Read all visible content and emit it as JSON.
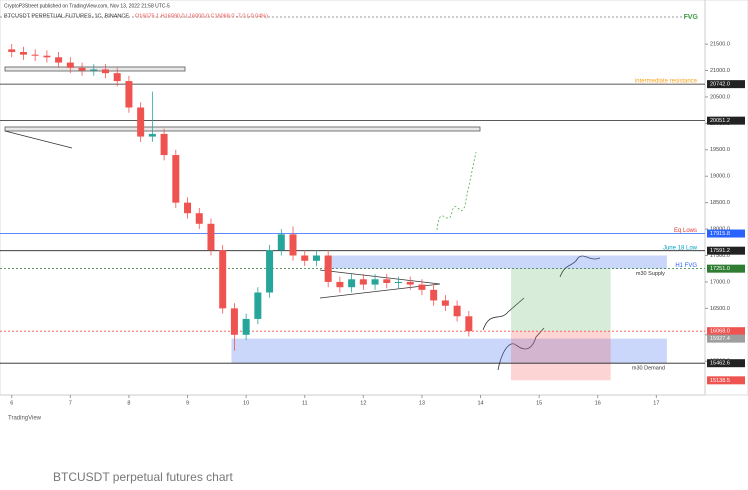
{
  "header": {
    "author": "CryptoP3Street published on TradingView.com, Nov 13, 2022 21:58 UTC-5",
    "symbol": "BTCUSDT PERPETUAL FUTURES, 1C, BINANCE",
    "ohlc": "O16075.1 H16090.0 L16000.0 C16068.0 -7.0 (-0.04%)",
    "corner_tag": "FVG"
  },
  "chart_data": {
    "type": "candlestick",
    "x": [
      6.0,
      6.2,
      6.4,
      6.6,
      6.8,
      7.0,
      7.2,
      7.4,
      7.6,
      7.8,
      8.0,
      8.2,
      8.4,
      8.6,
      8.8,
      9.0,
      9.2,
      9.4,
      9.6,
      9.8,
      10.0,
      10.2,
      10.4,
      10.6,
      10.8,
      11.0,
      11.2,
      11.4,
      11.6,
      11.8,
      12.0,
      12.2,
      12.4,
      12.6,
      12.8,
      13.0,
      13.2,
      13.4,
      13.6,
      13.8
    ],
    "open": [
      21400,
      21350,
      21300,
      21280,
      21250,
      21150,
      21050,
      21000,
      21020,
      20950,
      20800,
      20300,
      19750,
      19800,
      19400,
      18500,
      18300,
      18100,
      17600,
      16500,
      16000,
      16300,
      16800,
      17600,
      17900,
      17500,
      17400,
      17500,
      17000,
      16900,
      17050,
      16950,
      17050,
      16980,
      17000,
      16950,
      16850,
      16650,
      16550,
      16350
    ],
    "high": [
      21500,
      21450,
      21400,
      21380,
      21350,
      21250,
      21150,
      21120,
      21120,
      21050,
      20900,
      20400,
      20600,
      19900,
      19500,
      18600,
      18400,
      18200,
      17700,
      16600,
      16400,
      16900,
      17700,
      18000,
      18050,
      17600,
      17600,
      17600,
      17100,
      17150,
      17150,
      17150,
      17150,
      17100,
      17100,
      17050,
      16950,
      16750,
      16650,
      16450
    ],
    "low": [
      21250,
      21200,
      21180,
      21150,
      21050,
      20950,
      20900,
      20900,
      20850,
      20700,
      20200,
      19650,
      19650,
      19300,
      18400,
      18200,
      18000,
      17500,
      16400,
      15700,
      15900,
      16200,
      16700,
      17500,
      17400,
      17300,
      17300,
      16900,
      16800,
      16800,
      16850,
      16850,
      16880,
      16880,
      16850,
      16750,
      16550,
      16450,
      16250,
      15968
    ],
    "close": [
      21350,
      21300,
      21280,
      21250,
      21150,
      21050,
      21000,
      21020,
      20950,
      20800,
      20300,
      19750,
      19800,
      19400,
      18500,
      18300,
      18100,
      17600,
      16500,
      16000,
      16300,
      16800,
      17600,
      17900,
      17500,
      17400,
      17500,
      17000,
      16900,
      17050,
      16950,
      17050,
      16980,
      17000,
      16950,
      16850,
      16650,
      16550,
      16350,
      16068
    ],
    "up_color": "#26a69a",
    "down_color": "#ef5350",
    "xlim": [
      5.8,
      17.83
    ],
    "xticks": [
      6,
      7,
      8,
      9,
      10,
      11,
      12,
      13,
      14,
      15,
      16,
      17
    ],
    "ylim": [
      15050,
      22050
    ],
    "yticks": [
      {
        "value": 21500,
        "label": "21500.0"
      },
      {
        "value": 21000,
        "label": "21000.0"
      },
      {
        "value": 20500,
        "label": "20500.0"
      },
      {
        "value": 20000,
        "label": "20000.0"
      },
      {
        "value": 19500,
        "label": "19500.0"
      },
      {
        "value": 19000,
        "label": "19000.0"
      },
      {
        "value": 18500,
        "label": "18500.0"
      },
      {
        "value": 18000,
        "label": "18000.0"
      },
      {
        "value": 17500,
        "label": "17500.0"
      },
      {
        "value": 17000,
        "label": "17000.0"
      },
      {
        "value": 16500,
        "label": "16500.0"
      },
      {
        "value": 16000,
        "label": "16000.0"
      },
      {
        "value": 15500,
        "label": "15500.0"
      }
    ],
    "levels": [
      {
        "value": 20742,
        "value_label": "20742.0",
        "name": "intermediate resistance",
        "color": "#222222",
        "label_color": "#f7a21b",
        "style": "solid"
      },
      {
        "value": 20051.2,
        "value_label": "20051.2",
        "color": "#222222",
        "style": "solid"
      },
      {
        "value": 17915.8,
        "value_label": "17915.8",
        "name": "Eq Lows",
        "color": "#2962ff",
        "label_color": "#e53935",
        "style": "solid"
      },
      {
        "value": 17591.2,
        "value_label": "17591.2",
        "name": "June 18 Low",
        "color": "#222222",
        "label_color": "#00a0c8",
        "style": "solid"
      },
      {
        "value": 17251,
        "value_label": "17251.0",
        "name": "H1 FVG",
        "color": "#2e7d32",
        "label_color": "#2962ff",
        "style": "dotted"
      },
      {
        "value": 16068,
        "value_label": "16068.0",
        "color": "#ef5350",
        "style": "dotted"
      },
      {
        "value": 15927.4,
        "value_label": "15927.4",
        "color": "#9e9e9e",
        "style": "none"
      },
      {
        "value": 15462.6,
        "value_label": "15462.6",
        "color": "#222222",
        "style": "solid"
      },
      {
        "value": 15138.5,
        "value_label": "15138.5",
        "color": "#ef5350",
        "style": "none"
      }
    ],
    "zones": [
      {
        "label": "m30 Supply",
        "from": 11.34,
        "to": 17.18,
        "top": 17500,
        "bottom": 17251,
        "color": "rgba(80,120,240,0.3)"
      },
      {
        "label": "m30 Demand",
        "from": 9.75,
        "to": 17.18,
        "top": 15927.4,
        "bottom": 15462.6,
        "color": "rgba(80,120,240,0.3)"
      },
      {
        "from": 14.52,
        "to": 16.22,
        "top": 17251,
        "bottom": 16068,
        "color": "rgba(76,175,80,0.22)"
      },
      {
        "from": 14.52,
        "to": 16.22,
        "top": 16068,
        "bottom": 15138.5,
        "color": "rgba(239,83,80,0.25)"
      }
    ]
  },
  "footer": {
    "logo": "TradingView",
    "caption": "BTCUSDT perpetual futures chart"
  }
}
